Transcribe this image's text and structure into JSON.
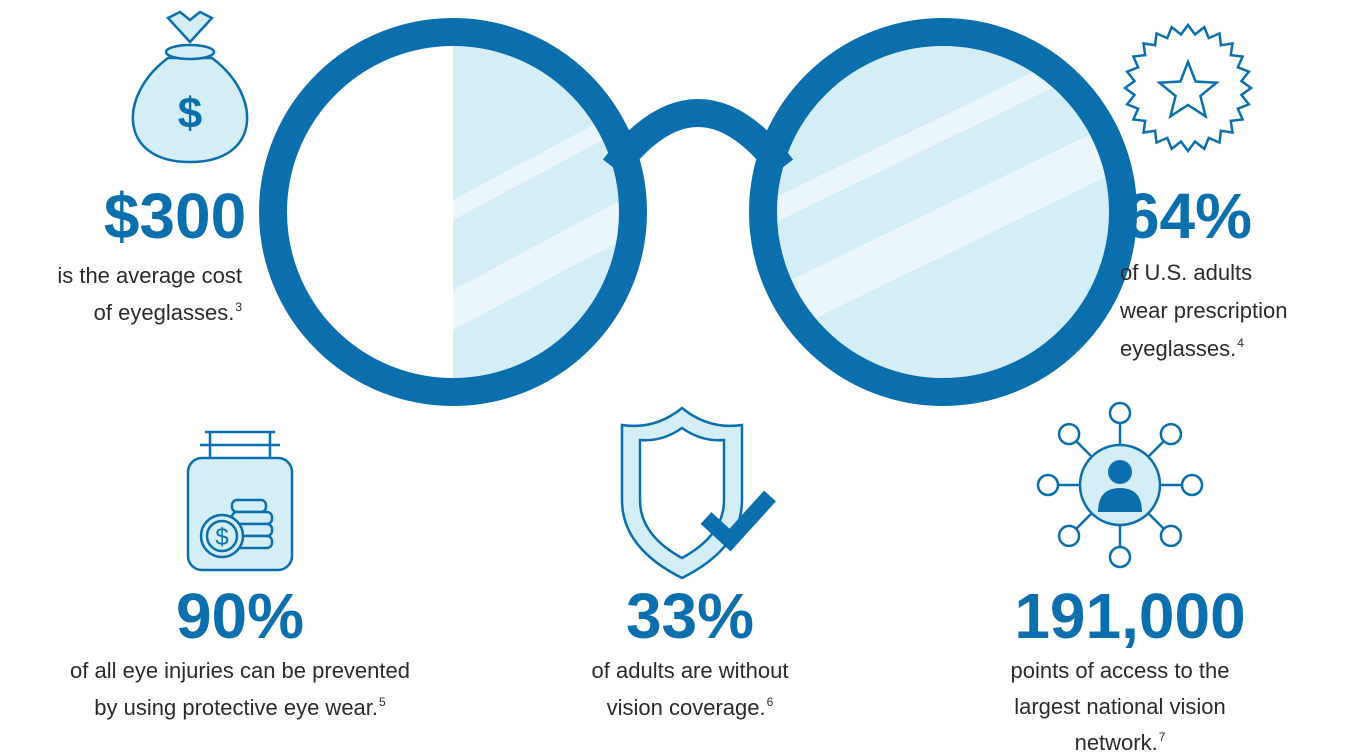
{
  "stats": [
    {
      "value": "$300",
      "lines": [
        "is the average cost",
        "of eyeglasses."
      ],
      "note": "3"
    },
    {
      "value": "64%",
      "lines": [
        "of U.S. adults",
        "wear prescription",
        "eyeglasses."
      ],
      "note": "4"
    },
    {
      "value": "90%",
      "lines": [
        "of all eye injuries can be prevented",
        "by using protective eye wear."
      ],
      "note": "5"
    },
    {
      "value": "33%",
      "lines": [
        "of adults are without",
        "vision coverage."
      ],
      "note": "6"
    },
    {
      "value": "191,000",
      "lines": [
        "points of access to the",
        "largest national vision",
        "network."
      ],
      "note": "7"
    }
  ],
  "icon_labels": {
    "money_bag": "$",
    "coin": "$"
  }
}
